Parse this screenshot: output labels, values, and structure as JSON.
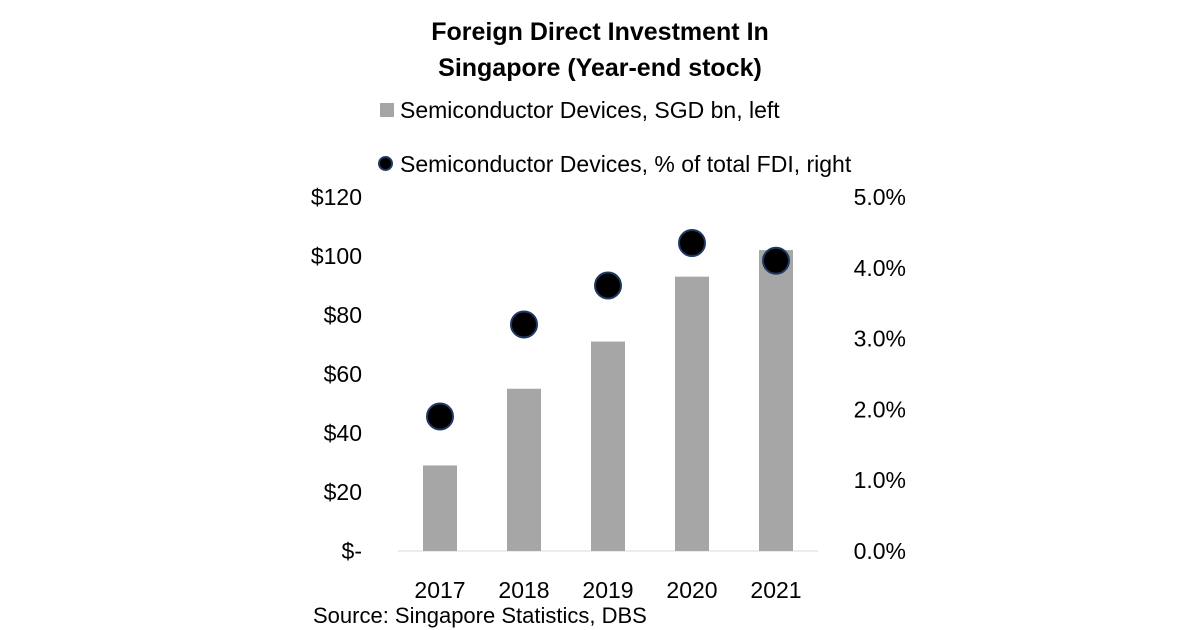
{
  "title_line1": "Foreign Direct Investment In",
  "title_line2": "Singapore (Year-end stock)",
  "legend": {
    "bar_label": "Semiconductor Devices, SGD bn, left",
    "dot_label": "Semiconductor Devices, % of total FDI, right"
  },
  "source": "Source: Singapore Statistics, DBS",
  "colors": {
    "bar": "#a6a6a6",
    "dot": "#000000",
    "dot_outline": "#1f3864"
  },
  "chart_data": {
    "type": "bar",
    "categories": [
      "2017",
      "2018",
      "2019",
      "2020",
      "2021"
    ],
    "series": [
      {
        "name": "Semiconductor Devices, SGD bn, left",
        "type": "bar",
        "axis": "left",
        "values": [
          29,
          55,
          71,
          93,
          102
        ]
      },
      {
        "name": "Semiconductor Devices, % of total FDI, right",
        "type": "scatter",
        "axis": "right",
        "values": [
          1.9,
          3.2,
          3.75,
          4.35,
          4.1
        ]
      }
    ],
    "y_left": {
      "min": 0,
      "max": 120,
      "step": 20,
      "tick_labels": [
        "$-",
        "$20",
        "$40",
        "$60",
        "$80",
        "$100",
        "$120"
      ]
    },
    "y_right": {
      "min": 0,
      "max": 5,
      "step": 1,
      "tick_labels": [
        "0.0%",
        "1.0%",
        "2.0%",
        "3.0%",
        "4.0%",
        "5.0%"
      ]
    },
    "grid": false
  }
}
